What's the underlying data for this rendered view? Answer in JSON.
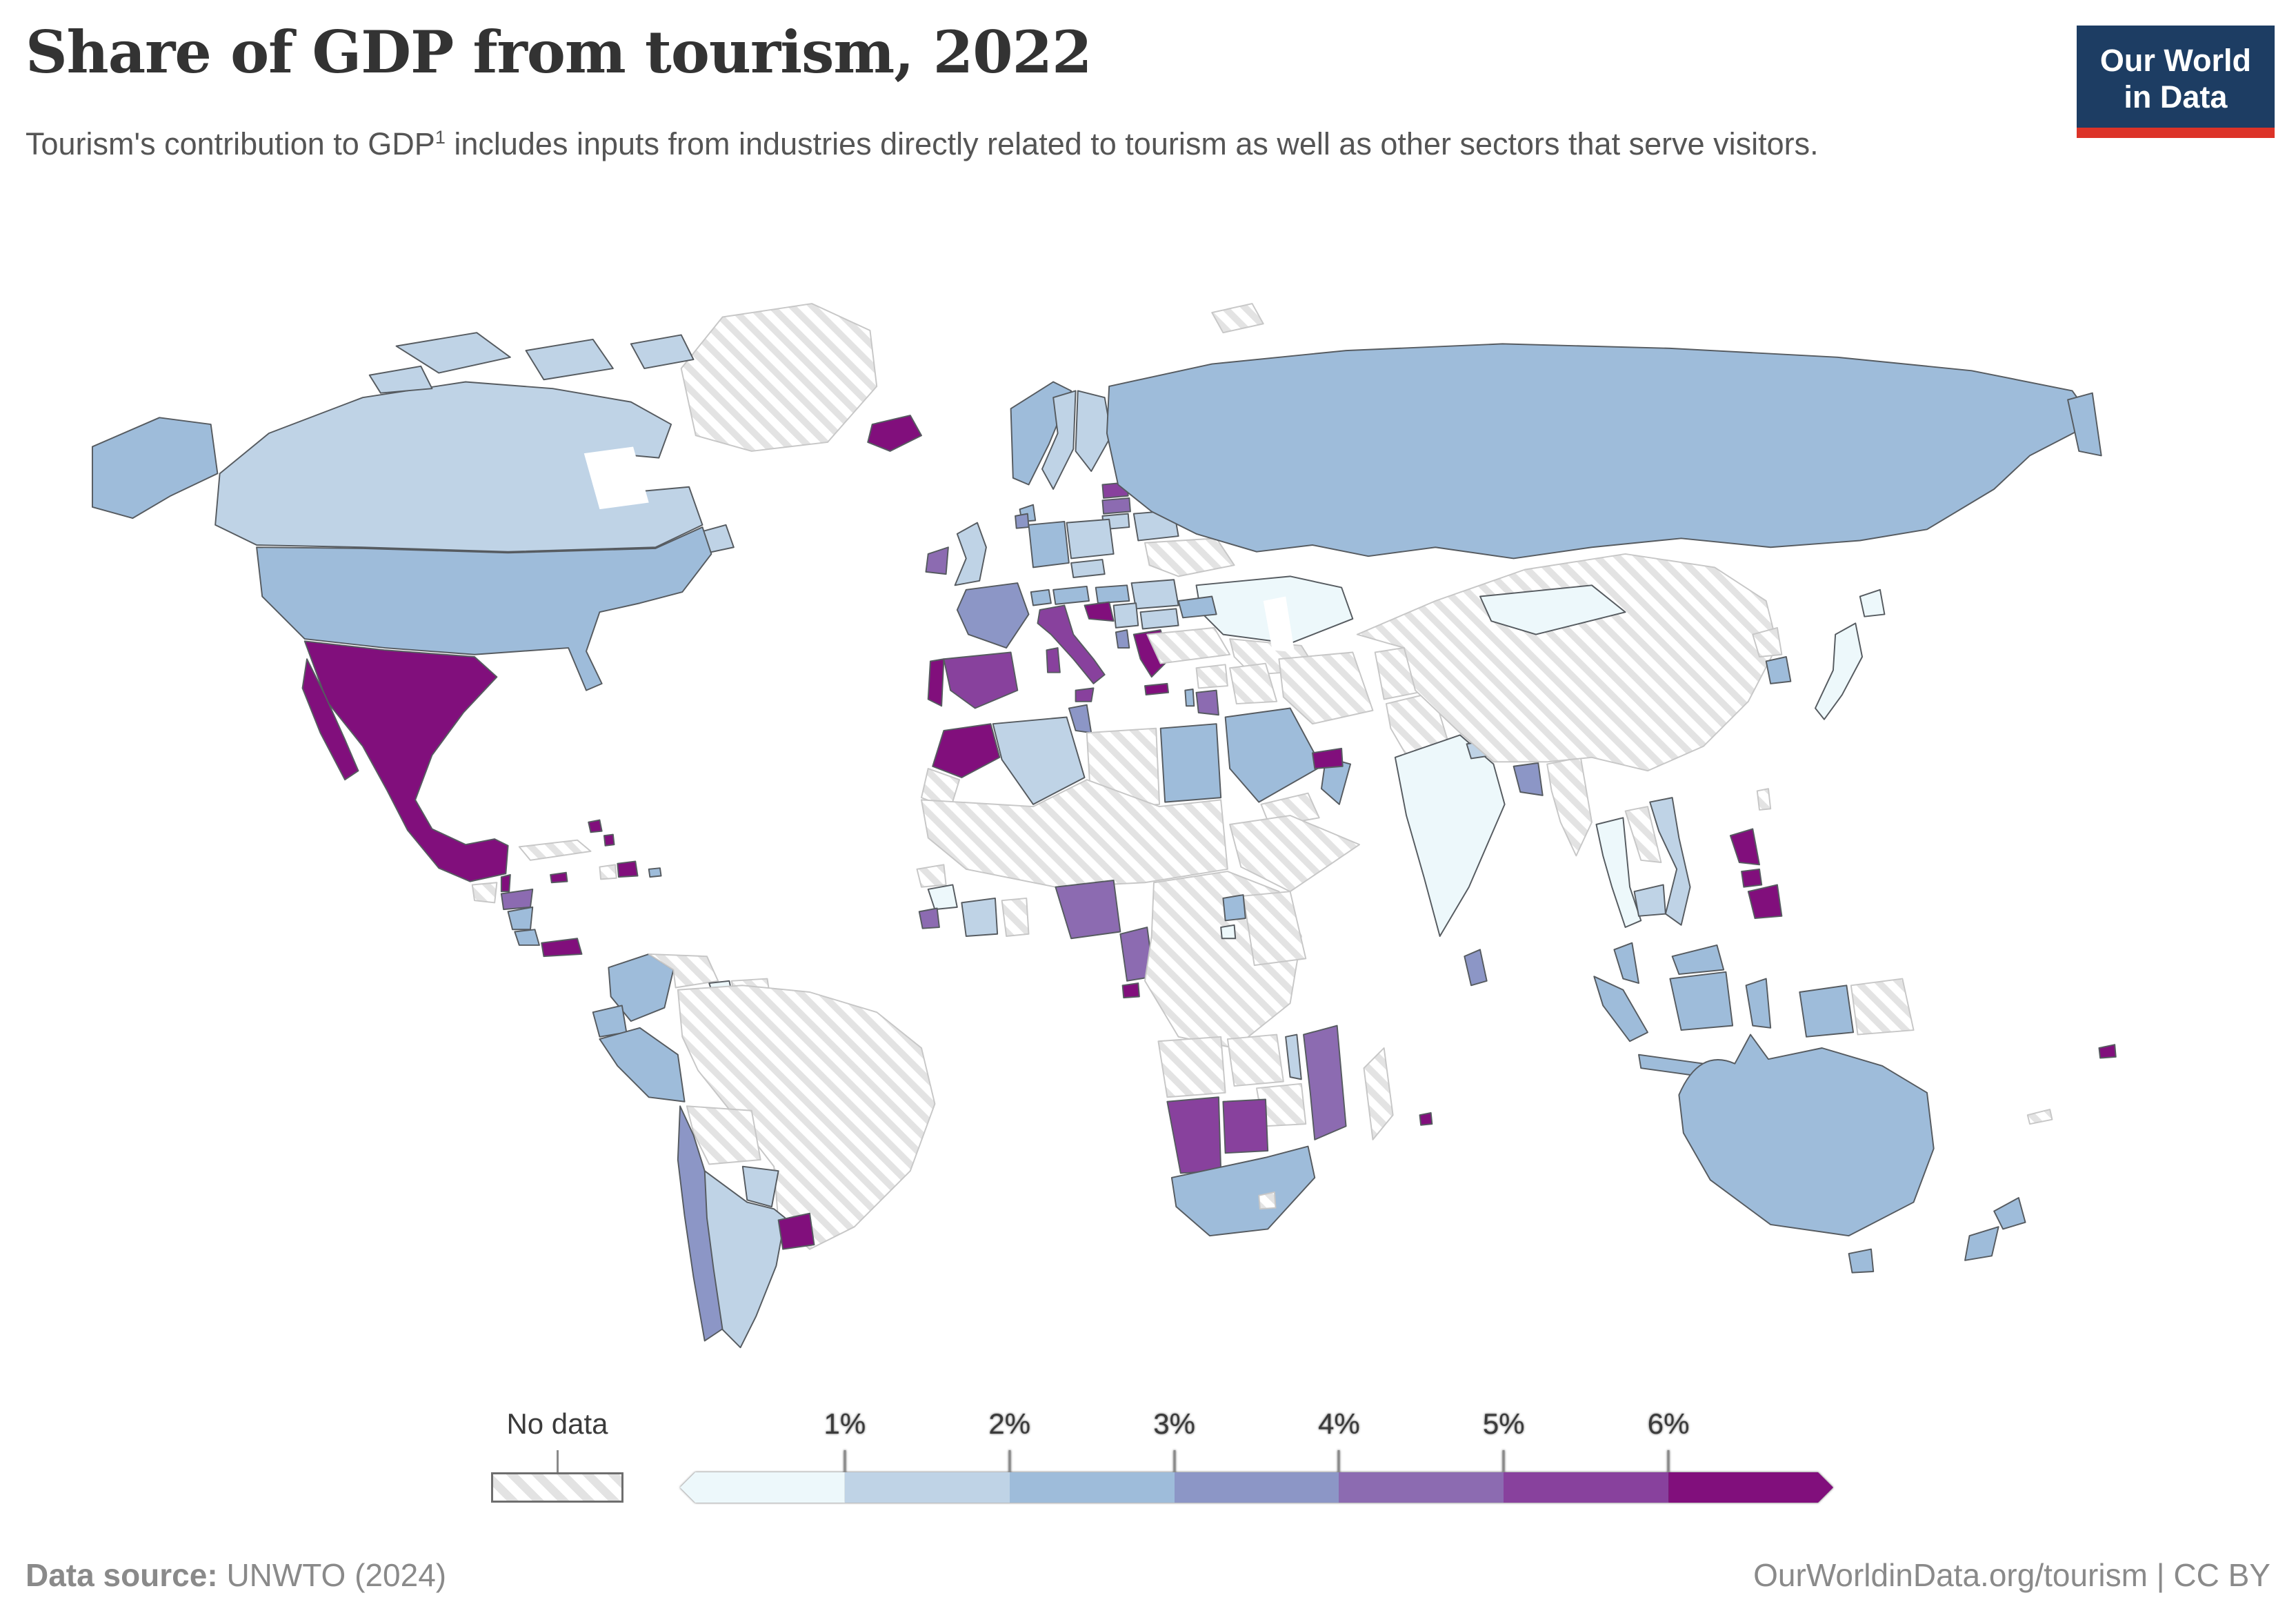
{
  "header": {
    "title": "Share of GDP from tourism, 2022",
    "subtitle_prefix": "Tourism's contribution to GDP",
    "subtitle_sup": "1",
    "subtitle_rest": " includes inputs from industries directly related to tourism as well as other sectors that serve visitors."
  },
  "logo": {
    "line1": "Our World",
    "line2": "in Data",
    "bg_color": "#1d3d63",
    "accent_color": "#dc3328"
  },
  "legend": {
    "no_data_label": "No data",
    "ticks": [
      "1%",
      "2%",
      "3%",
      "4%",
      "5%",
      "6%"
    ],
    "bins": [
      {
        "label": "<1%",
        "color": "#edf8fb"
      },
      {
        "label": "1-2%",
        "color": "#bfd3e6"
      },
      {
        "label": "2-3%",
        "color": "#9ebcda"
      },
      {
        "label": "3-4%",
        "color": "#8c96c6"
      },
      {
        "label": "4-5%",
        "color": "#8c6bb1"
      },
      {
        "label": "5-6%",
        "color": "#88419d"
      },
      {
        "label": ">6%",
        "color": "#810f7c"
      }
    ]
  },
  "footer": {
    "source_label": "Data source:",
    "source_value": "UNWTO (2024)",
    "right_text": "OurWorldinData.org/tourism | CC BY"
  },
  "map": {
    "bin_colors": {
      "lt1": "#edf8fb",
      "1-2": "#bfd3e6",
      "2-3": "#9ebcda",
      "3-4": "#8c96c6",
      "4-5": "#8c6bb1",
      "5-6": "#88419d",
      "gt6": "#810f7c"
    },
    "stroke_data": "#565b60",
    "stroke_nodata": "#c7c7c7",
    "countries": {
      "greenland": "nodata",
      "canada": "1-2",
      "usa": "2-3",
      "mexico": "gt6",
      "guatemala": "nodata",
      "belize": "gt6",
      "honduras": "4-5",
      "nicaragua": "2-3",
      "costa_rica": "2-3",
      "panama": "gt6",
      "cuba": "nodata",
      "jamaica": "gt6",
      "haiti": "nodata",
      "dominican_republic": "gt6",
      "bahamas": "gt6",
      "puerto_rico": "2-3",
      "colombia": "2-3",
      "venezuela": "nodata",
      "guyana": "lt1",
      "suriname": "nodata",
      "ecuador": "2-3",
      "peru": "2-3",
      "brazil": "nodata",
      "bolivia": "nodata",
      "paraguay": "1-2",
      "chile": "3-4",
      "argentina": "1-2",
      "uruguay": "gt6",
      "iceland": "gt6",
      "ireland": "4-5",
      "united_kingdom": "1-2",
      "norway": "2-3",
      "sweden": "1-2",
      "finland": "1-2",
      "denmark": "2-3",
      "estonia": "5-6",
      "latvia": "4-5",
      "lithuania": "1-2",
      "belarus": "1-2",
      "poland": "1-2",
      "germany": "2-3",
      "netherlands": "3-4",
      "france": "3-4",
      "switzerland": "2-3",
      "austria": "2-3",
      "czechia": "1-2",
      "hungary": "2-3",
      "romania": "1-2",
      "bulgaria": "1-2",
      "serbia": "1-2",
      "croatia": "gt6",
      "albania": "3-4",
      "greece": "gt6",
      "italy": "5-6",
      "spain": "5-6",
      "portugal": "gt6",
      "ukraine": "nodata",
      "russia": "2-3",
      "kazakhstan": "lt1",
      "uzbekistan": "nodata",
      "caucasus": "2-3",
      "turkey": "nodata",
      "syria": "nodata",
      "iraq": "nodata",
      "iran": "nodata",
      "israel": "2-3",
      "jordan": "4-5",
      "saudi_arabia": "2-3",
      "yemen": "nodata",
      "oman": "2-3",
      "uae": "gt6",
      "afghanistan": "nodata",
      "pakistan": "nodata",
      "india": "lt1",
      "nepal": "1-2",
      "bhutan": "gt6",
      "bangladesh": "3-4",
      "sri_lanka": "3-4",
      "myanmar": "nodata",
      "china": "nodata",
      "mongolia": "lt1",
      "north_korea": "nodata",
      "south_korea": "2-3",
      "japan": "lt1",
      "taiwan": "nodata",
      "thailand": "lt1",
      "laos": "nodata",
      "cambodia": "1-2",
      "vietnam": "1-2",
      "malaysia": "2-3",
      "indonesia": "2-3",
      "philippines": "gt6",
      "papua_new_guinea": "nodata",
      "australia": "2-3",
      "new_zealand": "2-3",
      "fiji": "gt6",
      "new_caledonia": "nodata",
      "morocco": "gt6",
      "western_sahara": "nodata",
      "algeria": "1-2",
      "tunisia": "3-4",
      "libya": "nodata",
      "egypt": "2-3",
      "sahel": "nodata",
      "senegal": "nodata",
      "guinea": "lt1",
      "sierra_leone": "4-5",
      "cote_divoire": "1-2",
      "ghana": "nodata",
      "nigeria": "4-5",
      "cameroon": "4-5",
      "equatorial_guinea": "gt6",
      "central_africa": "nodata",
      "horn_of_africa": "nodata",
      "kenya_tanzania": "nodata",
      "uganda": "2-3",
      "rwanda": "lt1",
      "angola": "nodata",
      "zambia": "nodata",
      "malawi": "1-2",
      "mozambique": "4-5",
      "zimbabwe": "nodata",
      "namibia": "5-6",
      "botswana": "5-6",
      "south_africa": "2-3",
      "lesotho": "nodata",
      "madagascar": "nodata",
      "mauritius": "gt6",
      "svalbard": "nodata"
    }
  }
}
